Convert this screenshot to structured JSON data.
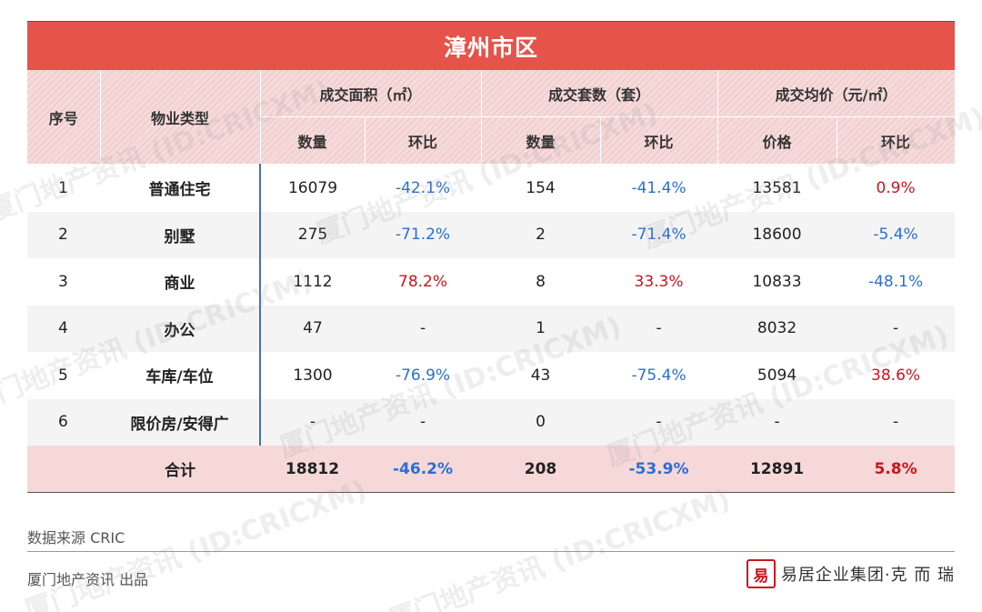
{
  "title": "漳州市区",
  "headers": {
    "seq": "序号",
    "type": "物业类型",
    "area_group": "成交面积（㎡）",
    "units_group": "成交套数（套）",
    "price_group": "成交均价（元/㎡）",
    "qty": "数量",
    "mom": "环比",
    "price": "价格"
  },
  "rows": [
    {
      "idx": "1",
      "type": "普通住宅",
      "area": "16079",
      "area_mom": "-42.1%",
      "units": "154",
      "units_mom": "-41.4%",
      "price": "13581",
      "price_mom": "0.9%"
    },
    {
      "idx": "2",
      "type": "别墅",
      "area": "275",
      "area_mom": "-71.2%",
      "units": "2",
      "units_mom": "-71.4%",
      "price": "18600",
      "price_mom": "-5.4%"
    },
    {
      "idx": "3",
      "type": "商业",
      "area": "1112",
      "area_mom": "78.2%",
      "units": "8",
      "units_mom": "33.3%",
      "price": "10833",
      "price_mom": "-48.1%"
    },
    {
      "idx": "4",
      "type": "办公",
      "area": "47",
      "area_mom": "-",
      "units": "1",
      "units_mom": "-",
      "price": "8032",
      "price_mom": "-"
    },
    {
      "idx": "5",
      "type": "车库/车位",
      "area": "1300",
      "area_mom": "-76.9%",
      "units": "43",
      "units_mom": "-75.4%",
      "price": "5094",
      "price_mom": "38.6%"
    },
    {
      "idx": "6",
      "type": "限价房/安得广",
      "area": "-",
      "area_mom": "-",
      "units": "0",
      "units_mom": "-",
      "price": "-",
      "price_mom": "-"
    }
  ],
  "total": {
    "label": "合计",
    "area": "18812",
    "area_mom": "-46.2%",
    "units": "208",
    "units_mom": "-53.9%",
    "price": "12891",
    "price_mom": "5.8%"
  },
  "source": "数据来源  CRIC",
  "publisher": "厦门地产资讯  出品",
  "brand": {
    "seal": "易",
    "text": "易居企业集团·克 而 瑞"
  },
  "watermark": "厦门地产资讯 (ID:CRICXM)",
  "colors": {
    "title_bg": "#e5534b",
    "negative": "#2a6fd6",
    "positive": "#c8161d",
    "header_bg": "#f6dada"
  }
}
